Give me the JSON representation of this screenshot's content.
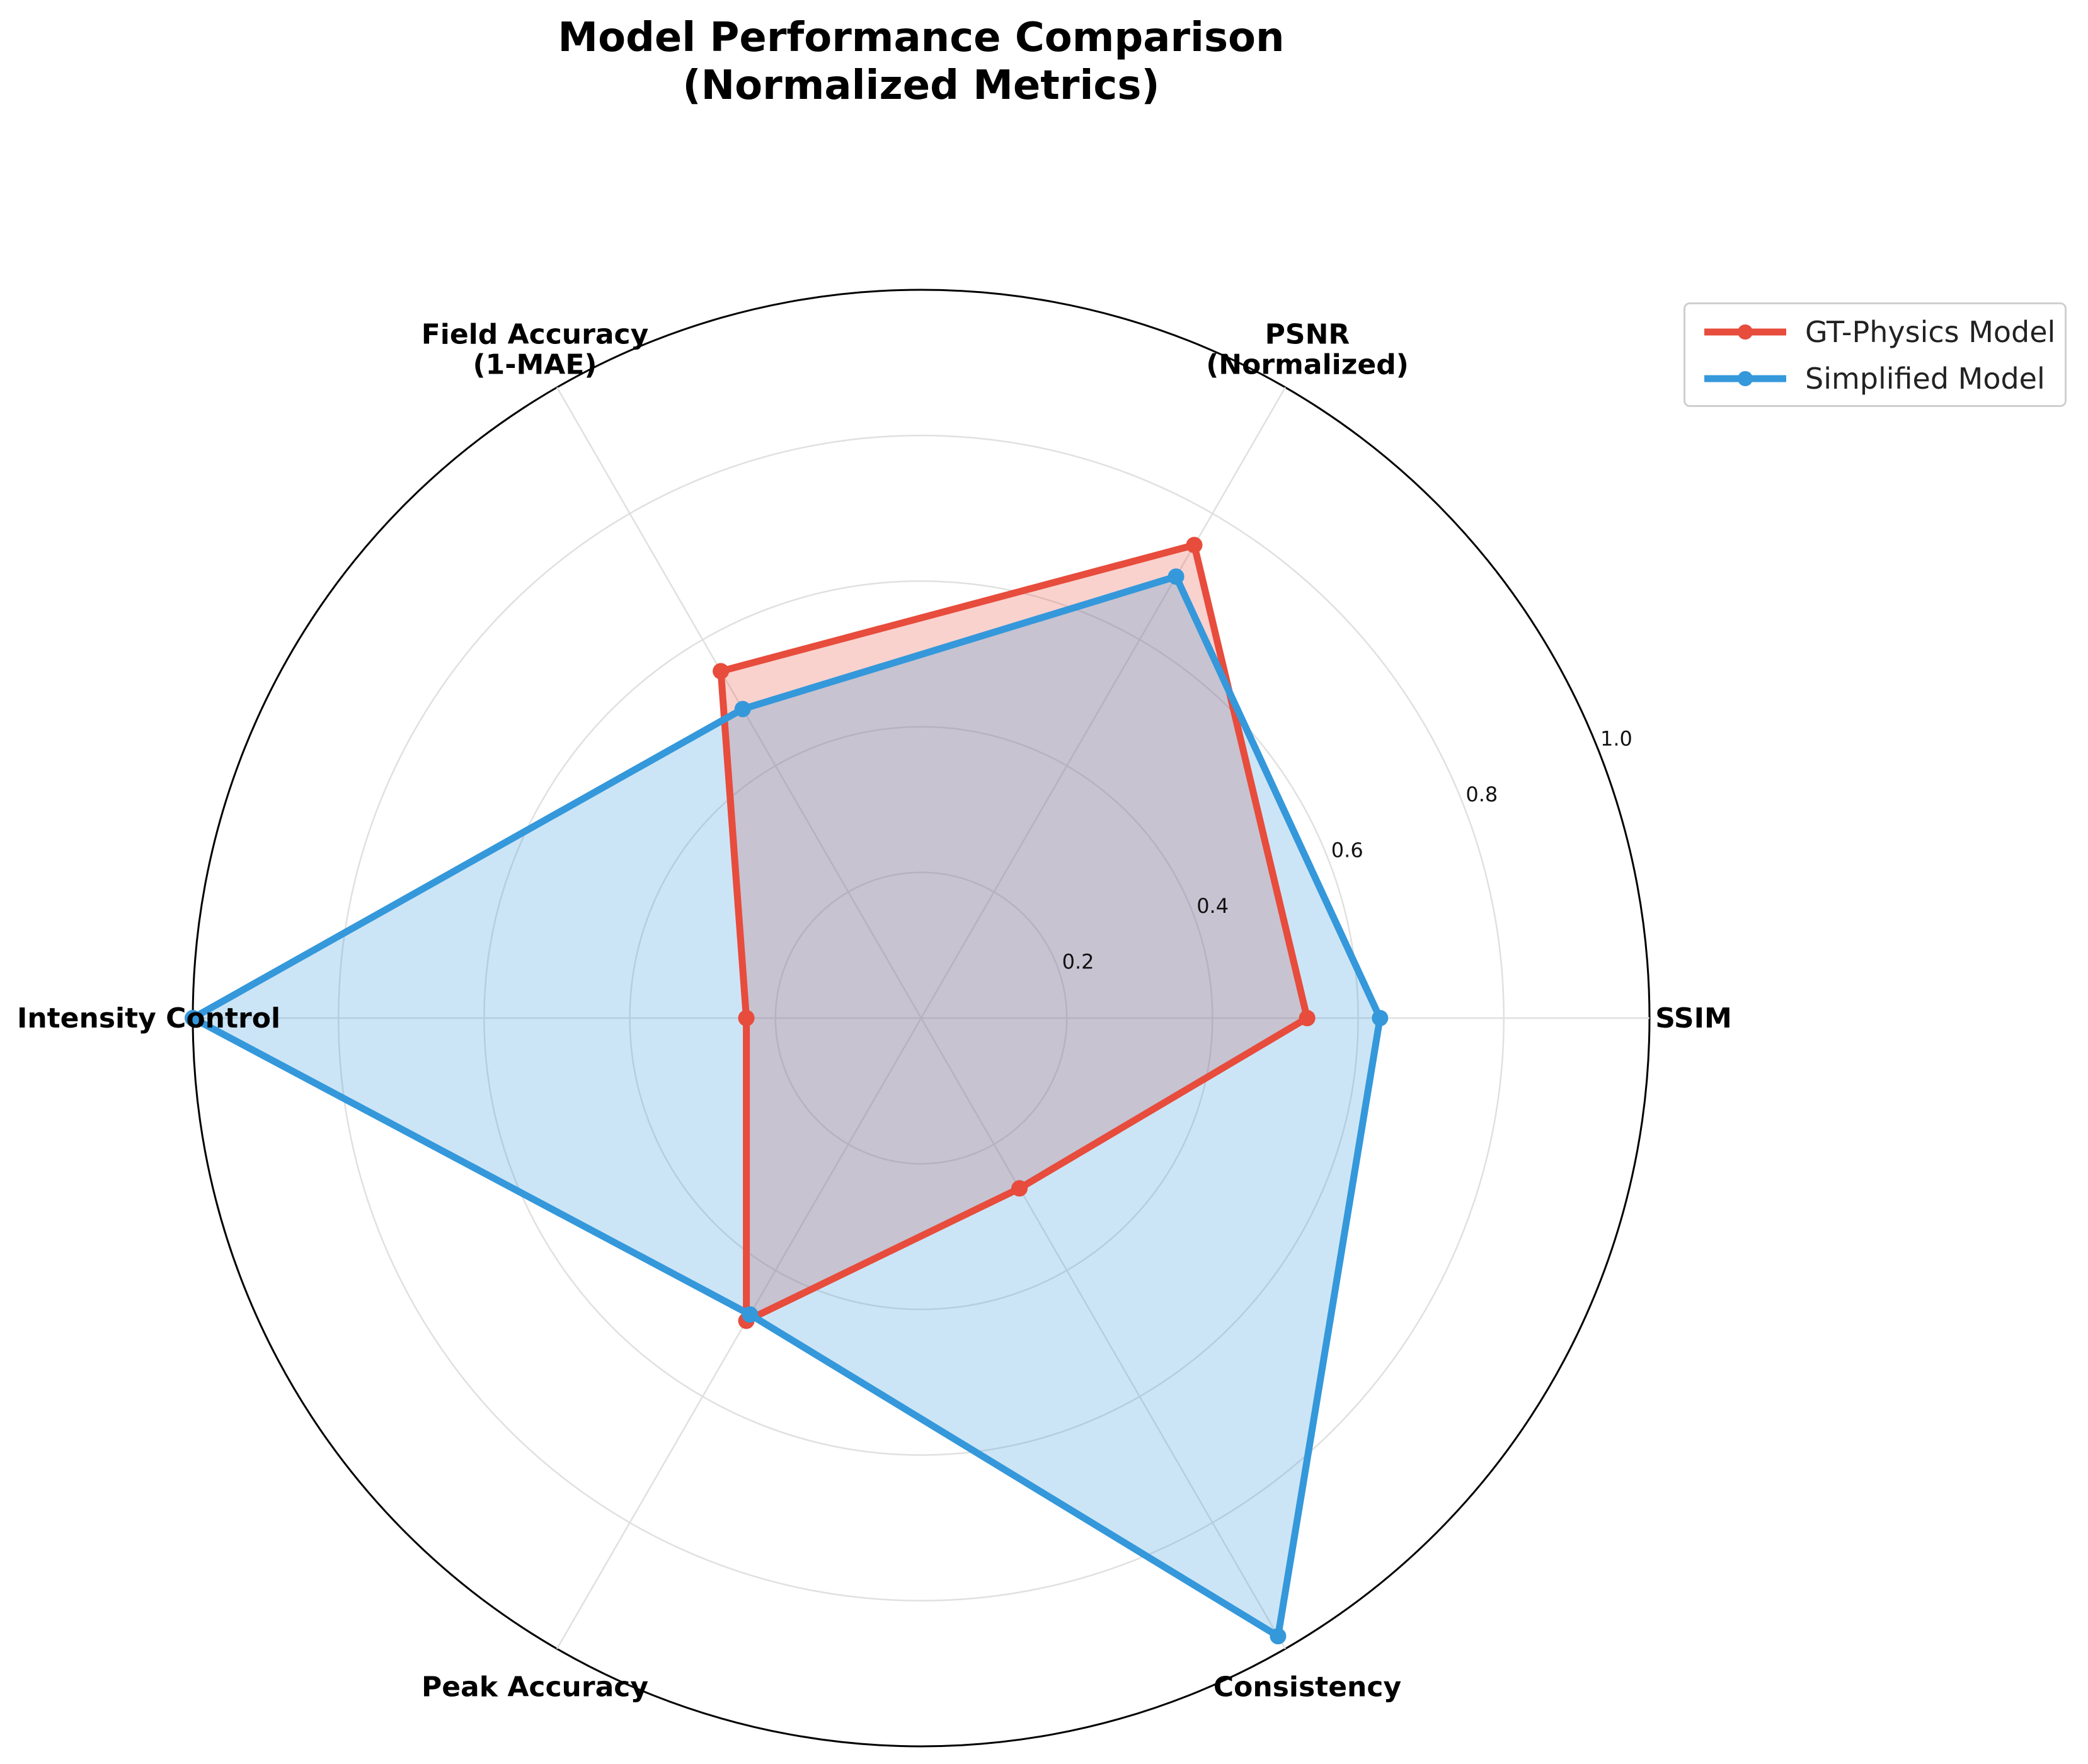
{
  "title_lines": [
    "Model Performance Comparison",
    "(Normalized Metrics)"
  ],
  "chart_data": {
    "type": "radar",
    "title": "Model Performance Comparison\n(Normalized Metrics)",
    "axes": [
      {
        "lines": [
          "SSIM"
        ]
      },
      {
        "lines": [
          "PSNR",
          "(Normalized)"
        ]
      },
      {
        "lines": [
          "Field Accuracy",
          "(1-MAE)"
        ]
      },
      {
        "lines": [
          "Intensity Control"
        ]
      },
      {
        "lines": [
          "Peak Accuracy"
        ]
      },
      {
        "lines": [
          "Consistency"
        ]
      }
    ],
    "rlim": [
      0,
      1.0
    ],
    "r_ticks": [
      "0.2",
      "0.4",
      "0.6",
      "0.8",
      "1.0"
    ],
    "r_tick_values": [
      0.2,
      0.4,
      0.6,
      0.8,
      1.0
    ],
    "grid": true,
    "legend_position": "upper-right, outside the plot",
    "series": [
      {
        "name": "GT-Physics Model",
        "color": "#e74c3c",
        "values": [
          0.53,
          0.75,
          0.55,
          0.24,
          0.48,
          0.27
        ]
      },
      {
        "name": "Simplified Model",
        "color": "#3498db",
        "values": [
          0.63,
          0.7,
          0.49,
          1.0,
          0.47,
          0.98
        ]
      }
    ]
  }
}
